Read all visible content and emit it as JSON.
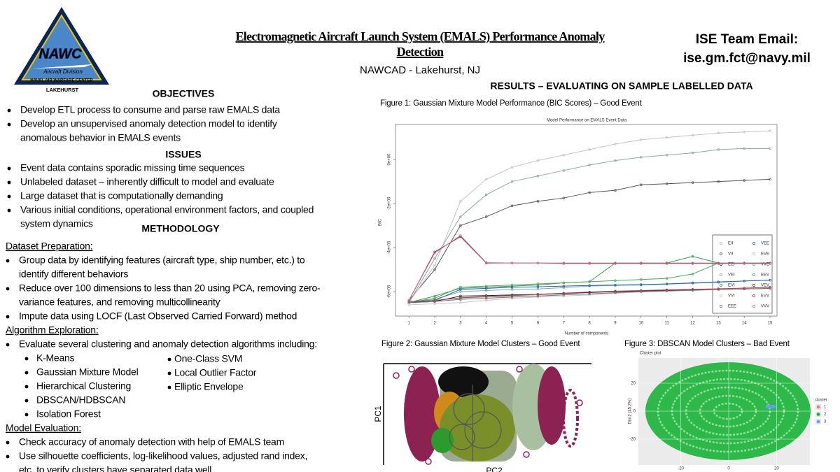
{
  "header": {
    "title_lines": [
      "Electromagnetic Aircraft Launch System (EMALS) Performance Anomaly",
      "Detection"
    ],
    "subtitle": "NAWCAD - Lakehurst, NJ",
    "email_label": "ISE Team Email:",
    "email": "ise.gm.fct@navy.mil"
  },
  "logo": {
    "name": "NAWC",
    "division": "Aircraft Division",
    "center": "NAVAL AIR WARFARE CENTER",
    "location": "LAKEHURST"
  },
  "objectives": {
    "heading": "OBJECTIVES",
    "bullets": [
      [
        "Develop ETL process to consume and parse raw EMALS data"
      ],
      [
        "Develop an unsupervised anomaly detection model to identify",
        "anomalous behavior in EMALS events"
      ]
    ]
  },
  "issues": {
    "heading": "ISSUES",
    "bullets": [
      [
        "Event data contains sporadic missing time sequences"
      ],
      [
        "Unlabeled dataset – inherently difficult to model and evaluate"
      ],
      [
        "Large dataset that is computationally demanding"
      ],
      [
        "Various initial conditions, operational environment factors, and coupled",
        "system dynamics"
      ]
    ]
  },
  "methodology": {
    "heading": "METHODOLOGY",
    "dataset": {
      "title": "Dataset Preparation:",
      "bullets": [
        [
          "Group data by identifying features (aircraft type, ship number, etc.) to",
          "identify different behaviors"
        ],
        [
          "Reduce over 100 dimensions to less than 20 using PCA, removing zero-",
          "variance features, and removing multicollinearity"
        ],
        [
          "Impute data using LOCF (Last Observed Carried Forward) method"
        ]
      ]
    },
    "algorithms": {
      "title": "Algorithm Exploration:",
      "bullets": [
        [
          "Evaluate several clustering and anomaly detection algorithms including:"
        ]
      ],
      "methods_left": [
        "K-Means",
        "Gaussian Mixture Model",
        "Hierarchical Clustering",
        "DBSCAN/HDBSCAN",
        "Isolation Forest"
      ],
      "methods_right": [
        "One-Class SVM",
        "Local Outlier Factor",
        "Elliptic Envelope"
      ]
    },
    "evaluation": {
      "title": "Model Evaluation:",
      "bullets": [
        [
          "Check accuracy of anomaly detection with help of EMALS team"
        ],
        [
          "Use silhouette coefficients, log-likelihood values, adjusted rand index,",
          "etc. to verify clusters have separated data well."
        ]
      ]
    }
  },
  "results": {
    "heading": "RESULTS – EVALUATING ON SAMPLE LABELLED DATA",
    "figure1": {
      "caption": "Figure 1: Gaussian Mixture Model Performance (BIC Scores) – Good Event",
      "chart": {
        "type": "line",
        "title": "Model Performance on EMALS Event Data",
        "x_label": "Number of components",
        "y_label": "BIC",
        "x": [
          1,
          2,
          3,
          4,
          5,
          6,
          7,
          8,
          9,
          10,
          11,
          12,
          13,
          14,
          15
        ],
        "xlim": [
          0.48,
          15.27
        ],
        "xticks": [
          1,
          2,
          3,
          4,
          5,
          6,
          7,
          8,
          9,
          10,
          11,
          12,
          13,
          14,
          15
        ],
        "ylim": [
          -711000,
          159000
        ],
        "yticks": [
          {
            "value": -600000,
            "label": "-6e+05"
          },
          {
            "value": -400000,
            "label": "-4e+05"
          },
          {
            "value": -200000,
            "label": "-2e+05"
          },
          {
            "value": 0,
            "label": "0e+00"
          }
        ],
        "series": [
          {
            "name": "EII",
            "color": "#b8b8b8",
            "values": [
              -650000,
              -640000,
              -630000,
              -625000,
              -620000,
              -615000,
              -610000,
              -605000,
              -600000,
              -598000,
              -595000,
              -590000,
              -588000,
              -585000,
              -580000
            ]
          },
          {
            "name": "VII",
            "color": "#555555",
            "values": [
              -640000,
              -500000,
              -300000,
              -260000,
              -210000,
              -190000,
              -175000,
              -150000,
              -140000,
              -115000,
              -110000,
              -105000,
              -100000,
              -95000,
              -90000
            ]
          },
          {
            "name": "EEI",
            "color": "#222222",
            "values": [
              -650000,
              -645000,
              -620000,
              -618000,
              -615000,
              -612000,
              -608000,
              -604000,
              -600000,
              -597000,
              -594000,
              -592000,
              -590000,
              -588000,
              -585000
            ]
          },
          {
            "name": "VEI",
            "color": "#7fa8c8",
            "values": [
              -650000,
              -635000,
              -600000,
              -595000,
              -590000,
              -588000,
              -582000,
              -575000,
              -572000,
              -570000,
              -566000,
              -562000,
              -558000,
              -552000,
              -548000
            ]
          },
          {
            "name": "EVI",
            "color": "#3c9a50",
            "values": [
              -650000,
              -620000,
              -585000,
              -580000,
              -575000,
              -570000,
              -560000,
              -555000,
              -470000,
              -470000,
              -470000,
              -440000,
              -470000,
              -470000,
              -470000
            ]
          },
          {
            "name": "VVI",
            "color": "#c8c8c8",
            "values": [
              -660000,
              -655000,
              -650000,
              -640000,
              -630000,
              -625000,
              -620000,
              -615000,
              -608000,
              -602000,
              -598000,
              -595000,
              -590000,
              -587000,
              -583000
            ]
          },
          {
            "name": "EEE",
            "color": "#777777",
            "values": [
              -650000,
              -645000,
              -635000,
              -630000,
              -625000,
              -620000,
              -615000,
              -610000,
              -605000,
              -600000,
              -597000,
              -594000,
              -590000,
              -588000,
              -585000
            ]
          },
          {
            "name": "VEE",
            "color": "#2f5f9f",
            "values": [
              -650000,
              -640000,
              -590000,
              -585000,
              -580000,
              -578000,
              -575000,
              -572000,
              -570000,
              -568000,
              -565000,
              -560000,
              -556000,
              -552000,
              -548000
            ]
          },
          {
            "name": "EVE",
            "color": "#c4c4c4",
            "values": [
              -650000,
              -480000,
              -190000,
              -90000,
              -35000,
              -5000,
              20000,
              45000,
              70000,
              90000,
              100000,
              110000,
              120000,
              125000,
              130000
            ]
          },
          {
            "name": "VVE",
            "color": "#8fa89a",
            "values": [
              -650000,
              -450000,
              -260000,
              -160000,
              -100000,
              -75000,
              -50000,
              -25000,
              -5000,
              10000,
              20000,
              30000,
              45000,
              50000,
              50000
            ]
          },
          {
            "name": "EEV",
            "color": "#4aa860",
            "values": [
              -650000,
              -630000,
              -580000,
              -575000,
              -570000,
              -565000,
              -560000,
              -555000,
              -550000,
              -545000,
              -540000,
              -520000,
              -470000,
              -470000,
              -470000
            ]
          },
          {
            "name": "VEV",
            "color": "#8b2a3a",
            "values": [
              -640000,
              -420000,
              -350000,
              -470000,
              -470000,
              -470000,
              -472000,
              -472000,
              -472000,
              -472000,
              -472000,
              -472000,
              -472000,
              -472000,
              -472000
            ]
          },
          {
            "name": "EVV",
            "color": "#a04050",
            "values": [
              -645000,
              -640000,
              -628000,
              -622000,
              -618000,
              -612000,
              -607000,
              -602000,
              -598000,
              -595000,
              -592000,
              -590000,
              -587000,
              -584000,
              -580000
            ]
          },
          {
            "name": "VVV",
            "color": "#c87898",
            "values": [
              -640000,
              -425000,
              -345000,
              -468000,
              -470000,
              -470000,
              -470000,
              -470000,
              -470000,
              -470000,
              -470000,
              -470000,
              -470000,
              -470000,
              -470000
            ]
          }
        ]
      }
    },
    "figure2": {
      "caption": "Figure 2: Gaussian Mixture Model Clusters – Good Event",
      "y_label": "PC1",
      "x_label": "PC2"
    },
    "figure3": {
      "caption": "Figure 3: DBSCAN Model Clusters – Bad Event",
      "chart": {
        "type": "scatter",
        "title": "Cluster plot",
        "y_label": "Dim2 (45.2%)",
        "xlim": [
          -37.7,
          33.9
        ],
        "ylim": [
          -38.5,
          38
        ],
        "xticks": [
          -20,
          0,
          20
        ],
        "yticks": [
          -20,
          0,
          20
        ],
        "legend_title": "cluster",
        "legend": [
          {
            "name": "1",
            "color": "#f8766d"
          },
          {
            "name": "2",
            "color": "#00ba38"
          },
          {
            "name": "3",
            "color": "#619cff"
          }
        ]
      }
    }
  }
}
